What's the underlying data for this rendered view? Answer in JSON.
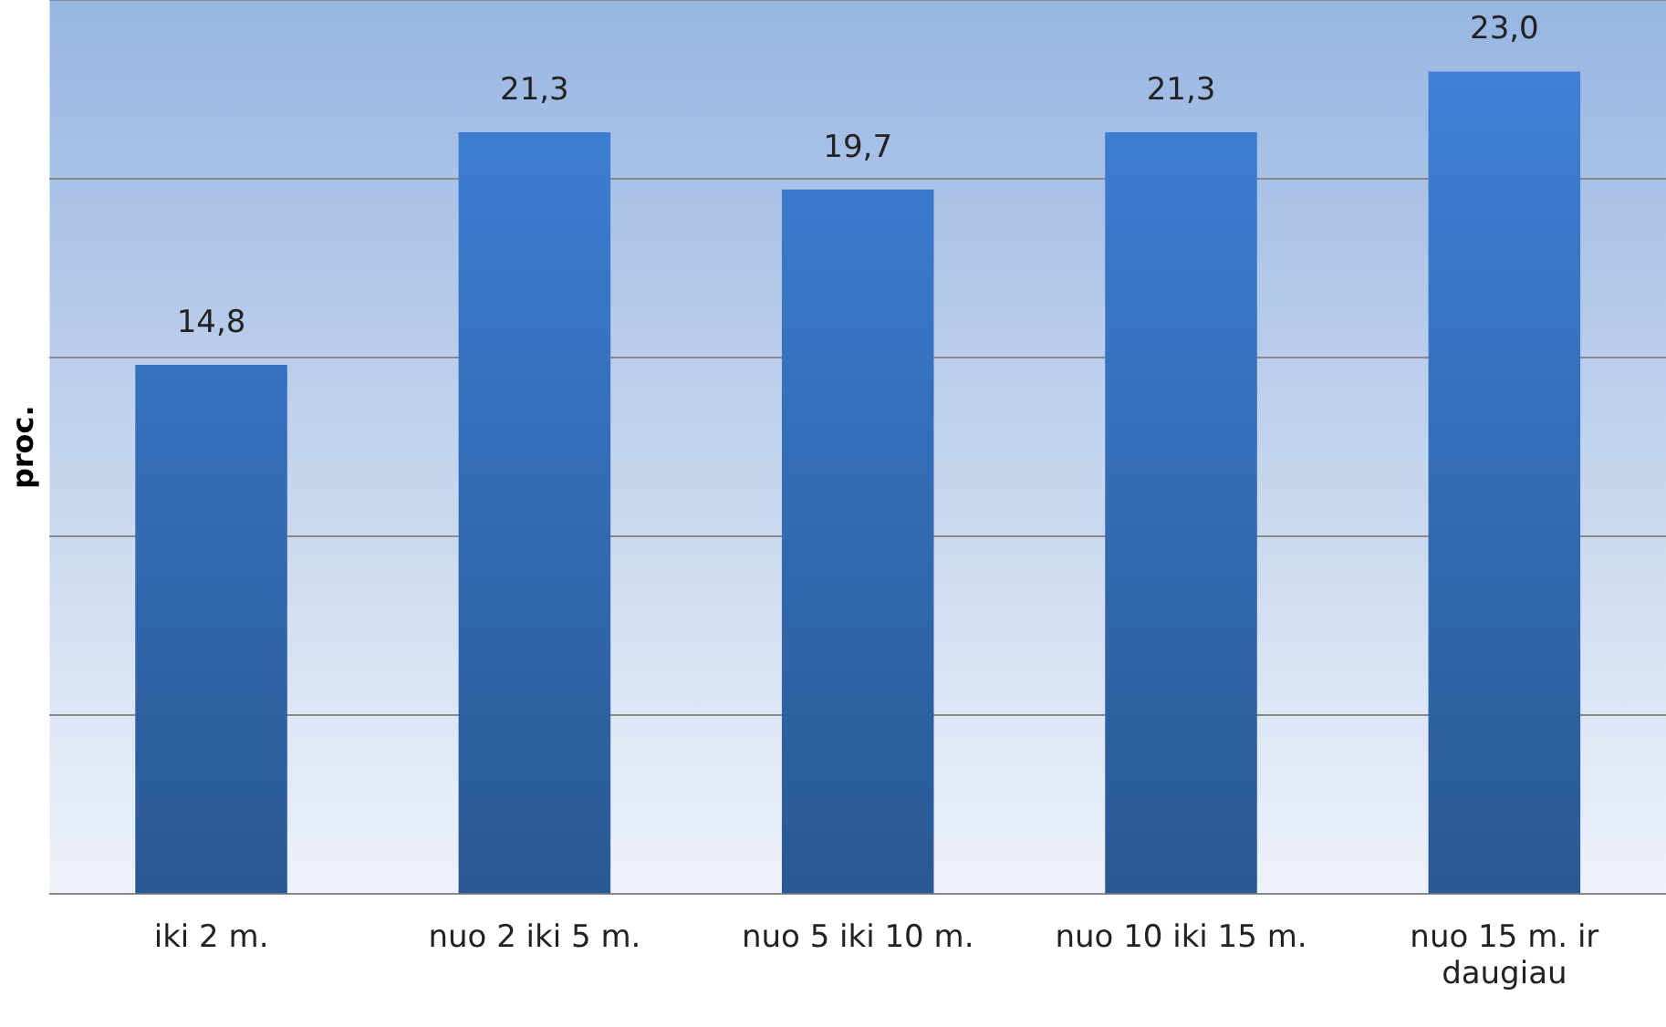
{
  "chart_data": {
    "type": "bar",
    "ylabel": "proc.",
    "categories": [
      "iki 2 m.",
      "nuo 2 iki 5 m.",
      "nuo 5 iki 10 m.",
      "nuo 10 iki 15 m.",
      "nuo 15 m. ir daugiau"
    ],
    "values": [
      14.8,
      21.3,
      19.7,
      21.3,
      23.0
    ],
    "value_labels": [
      "14,8",
      "21,3",
      "19,7",
      "21,3",
      "23,0"
    ],
    "color": "#3a7acc",
    "ylim": [
      0,
      25
    ],
    "yticks": [
      {
        "value": 0,
        "label": null
      },
      {
        "value": 5,
        "label": null
      },
      {
        "value": 10,
        "label": null
      },
      {
        "value": 15,
        "label": null
      },
      {
        "value": 20,
        "label": null
      },
      {
        "value": 25,
        "label": null
      }
    ],
    "grid": "y",
    "tick_labels": "x",
    "legend": false
  }
}
